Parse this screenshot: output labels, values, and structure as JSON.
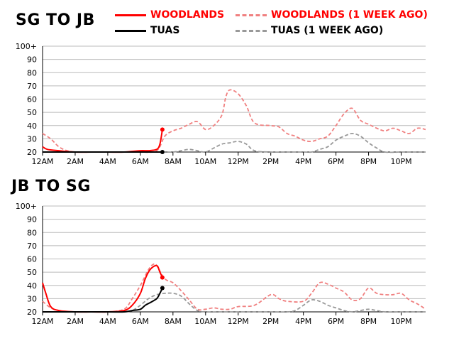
{
  "legend": {
    "woodlands": "WOODLANDS",
    "woodlands_week": "WOODLANDS (1 WEEK AGO)",
    "tuas": "TUAS",
    "tuas_week": "TUAS (1 WEEK AGO)"
  },
  "colors": {
    "woodlands": "#ff0000",
    "woodlands_week": "#f08080",
    "tuas": "#000000",
    "tuas_week": "#999999",
    "grid": "#bbbbbb"
  },
  "chart_data": [
    {
      "type": "line",
      "title": "SG TO JB",
      "xlabel": "",
      "ylabel": "",
      "ylim": [
        20,
        100
      ],
      "xlim": [
        0,
        23.5
      ],
      "grid": true,
      "legend_position": "top",
      "y_ticks": [
        20,
        30,
        40,
        50,
        60,
        70,
        80,
        90,
        "100+"
      ],
      "x_ticks": [
        {
          "x": 0,
          "label": "12AM"
        },
        {
          "x": 2,
          "label": "2AM"
        },
        {
          "x": 4,
          "label": "4AM"
        },
        {
          "x": 6,
          "label": "6AM"
        },
        {
          "x": 8,
          "label": "8AM"
        },
        {
          "x": 10,
          "label": "10AM"
        },
        {
          "x": 12,
          "label": "12PM"
        },
        {
          "x": 14,
          "label": "2PM"
        },
        {
          "x": 16,
          "label": "4PM"
        },
        {
          "x": 18,
          "label": "6PM"
        },
        {
          "x": 20,
          "label": "8PM"
        },
        {
          "x": 22,
          "label": "10PM"
        }
      ],
      "series": [
        {
          "name": "WOODLANDS (1 WEEK AGO)",
          "style": "dashed",
          "color": "#f08080",
          "x": [
            0,
            0.5,
            1,
            1.5,
            2,
            3,
            4,
            5,
            6,
            7,
            7.5,
            8,
            8.5,
            9,
            9.5,
            10,
            10.5,
            11,
            11.25,
            11.5,
            12,
            12.5,
            13,
            14,
            14.5,
            15,
            15.5,
            16,
            16.5,
            17,
            17.5,
            18,
            18.5,
            19,
            19.5,
            20,
            20.5,
            21,
            21.5,
            22,
            22.5,
            23,
            23.5
          ],
          "y": [
            34,
            30,
            24,
            21,
            20,
            20,
            20,
            20,
            20,
            21,
            32,
            36,
            38,
            41,
            43,
            37,
            40,
            48,
            62,
            67,
            64,
            55,
            42,
            40,
            39,
            34,
            32,
            29,
            28,
            30,
            32,
            40,
            49,
            53,
            44,
            41,
            38,
            36,
            38,
            36,
            34,
            38,
            37
          ]
        },
        {
          "name": "TUAS (1 WEEK AGO)",
          "style": "dashed",
          "color": "#999999",
          "x": [
            0,
            2,
            4,
            6,
            7,
            7.5,
            8,
            8.5,
            9,
            9.5,
            10,
            10.5,
            11,
            11.5,
            12,
            12.5,
            13,
            14,
            15,
            16,
            16.5,
            17,
            17.5,
            18,
            18.5,
            19,
            19.5,
            20,
            20.5,
            21,
            22,
            23,
            23.5
          ],
          "y": [
            20,
            20,
            20,
            20,
            20,
            20,
            20,
            21,
            22,
            21,
            20,
            23,
            26,
            27,
            28,
            26,
            21,
            20,
            20,
            20,
            20,
            22,
            24,
            29,
            32,
            34,
            32,
            27,
            23,
            20,
            20,
            20,
            20
          ]
        },
        {
          "name": "WOODLANDS",
          "style": "solid",
          "color": "#ff0000",
          "x": [
            0,
            0.3,
            1,
            2,
            3,
            4,
            5,
            6,
            6.5,
            7,
            7.2,
            7.35
          ],
          "y": [
            24,
            22,
            21,
            20,
            20,
            20,
            20,
            21,
            21,
            22,
            26,
            37
          ]
        },
        {
          "name": "TUAS",
          "style": "solid",
          "color": "#000000",
          "x": [
            0,
            2,
            4,
            6,
            7,
            7.35
          ],
          "y": [
            20,
            20,
            20,
            20,
            20,
            20
          ]
        }
      ]
    },
    {
      "type": "line",
      "title": "JB TO SG",
      "xlabel": "",
      "ylabel": "",
      "ylim": [
        20,
        100
      ],
      "xlim": [
        0,
        23.5
      ],
      "grid": true,
      "y_ticks": [
        20,
        30,
        40,
        50,
        60,
        70,
        80,
        90,
        "100+"
      ],
      "x_ticks": [
        {
          "x": 0,
          "label": "12AM"
        },
        {
          "x": 2,
          "label": "2AM"
        },
        {
          "x": 4,
          "label": "4AM"
        },
        {
          "x": 6,
          "label": "6AM"
        },
        {
          "x": 8,
          "label": "8AM"
        },
        {
          "x": 10,
          "label": "10AM"
        },
        {
          "x": 12,
          "label": "12PM"
        },
        {
          "x": 14,
          "label": "2PM"
        },
        {
          "x": 16,
          "label": "4PM"
        },
        {
          "x": 18,
          "label": "6PM"
        },
        {
          "x": 20,
          "label": "8PM"
        },
        {
          "x": 22,
          "label": "10PM"
        }
      ],
      "series": [
        {
          "name": "WOODLANDS (1 WEEK AGO)",
          "style": "dashed",
          "color": "#f08080",
          "x": [
            0,
            0.5,
            1,
            1.5,
            2,
            3,
            4,
            5,
            5.5,
            6,
            6.5,
            6.8,
            7,
            7.5,
            8,
            8.5,
            9,
            9.5,
            10,
            10.5,
            11,
            11.5,
            12,
            13,
            14,
            14.5,
            15,
            16,
            16.5,
            17,
            17.5,
            18,
            18.5,
            19,
            19.5,
            20,
            20.5,
            21,
            21.5,
            22,
            22.5,
            23,
            23.5
          ],
          "y": [
            28,
            23,
            21,
            20,
            20,
            20,
            20,
            22,
            30,
            40,
            52,
            56,
            55,
            45,
            42,
            36,
            29,
            22,
            22,
            23,
            22,
            22,
            24,
            25,
            33,
            30,
            28,
            28,
            34,
            42,
            41,
            38,
            35,
            29,
            30,
            38,
            34,
            33,
            33,
            34,
            29,
            26,
            22
          ]
        },
        {
          "name": "TUAS (1 WEEK AGO)",
          "style": "dashed",
          "color": "#999999",
          "x": [
            0,
            2,
            4,
            5,
            5.5,
            6,
            6.5,
            7,
            7.5,
            8,
            8.5,
            9,
            9.5,
            10,
            11,
            12,
            13,
            14,
            15,
            15.5,
            16,
            16.5,
            17,
            17.5,
            18,
            18.5,
            19,
            19.5,
            20,
            20.5,
            21,
            22,
            23,
            23.5
          ],
          "y": [
            20,
            20,
            20,
            20,
            21,
            25,
            30,
            33,
            34,
            34,
            32,
            26,
            21,
            20,
            20,
            20,
            20,
            20,
            20,
            21,
            25,
            29,
            28,
            25,
            23,
            21,
            20,
            21,
            22,
            21,
            20,
            20,
            20,
            20
          ]
        },
        {
          "name": "WOODLANDS",
          "style": "solid",
          "color": "#ff0000",
          "x": [
            0,
            0.2,
            0.5,
            1,
            2,
            3,
            4,
            5,
            5.5,
            6,
            6.3,
            6.6,
            7,
            7.2,
            7.35
          ],
          "y": [
            42,
            34,
            24,
            21,
            20,
            20,
            20,
            21,
            25,
            34,
            45,
            52,
            55,
            50,
            46
          ]
        },
        {
          "name": "TUAS",
          "style": "solid",
          "color": "#000000",
          "x": [
            0,
            2,
            4,
            5,
            5.5,
            6,
            6.3,
            6.6,
            7,
            7.2,
            7.35
          ],
          "y": [
            20,
            20,
            20,
            20,
            21,
            22,
            25,
            27,
            30,
            34,
            38
          ]
        }
      ]
    }
  ]
}
